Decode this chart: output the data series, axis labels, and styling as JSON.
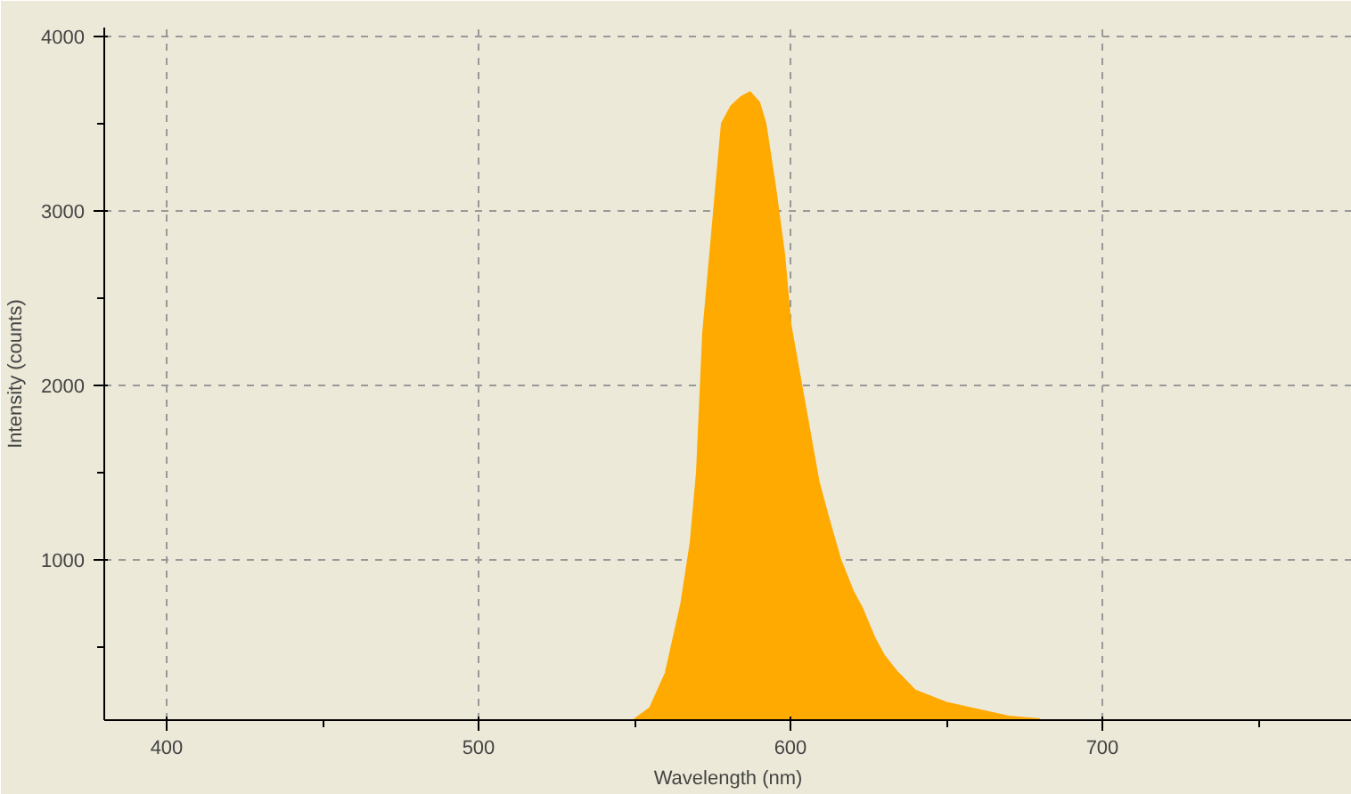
{
  "chart_data": {
    "type": "area",
    "xlabel": "Wavelength (nm)",
    "ylabel": "Intensity (counts)",
    "xlim": [
      380,
      780
    ],
    "ylim": [
      80,
      4050
    ],
    "xticks": [
      400,
      500,
      600,
      700
    ],
    "yticks": [
      1000,
      2000,
      3000,
      4000
    ],
    "grid": true,
    "line_style": "solid",
    "series": [
      {
        "color": "#ffaa00",
        "x": [
          550,
          555,
          560,
          565,
          568,
          570,
          572,
          575,
          578,
          581,
          584,
          587,
          590,
          592,
          595,
          598,
          600,
          603,
          606,
          609,
          612,
          616,
          620,
          623,
          627,
          630,
          634,
          640,
          650,
          660,
          670,
          680
        ],
        "values": [
          85,
          150,
          350,
          750,
          1100,
          1500,
          2300,
          2900,
          3500,
          3600,
          3650,
          3680,
          3620,
          3500,
          3150,
          2750,
          2350,
          2050,
          1750,
          1450,
          1250,
          1000,
          820,
          720,
          550,
          450,
          360,
          250,
          180,
          140,
          100,
          85
        ]
      }
    ]
  }
}
